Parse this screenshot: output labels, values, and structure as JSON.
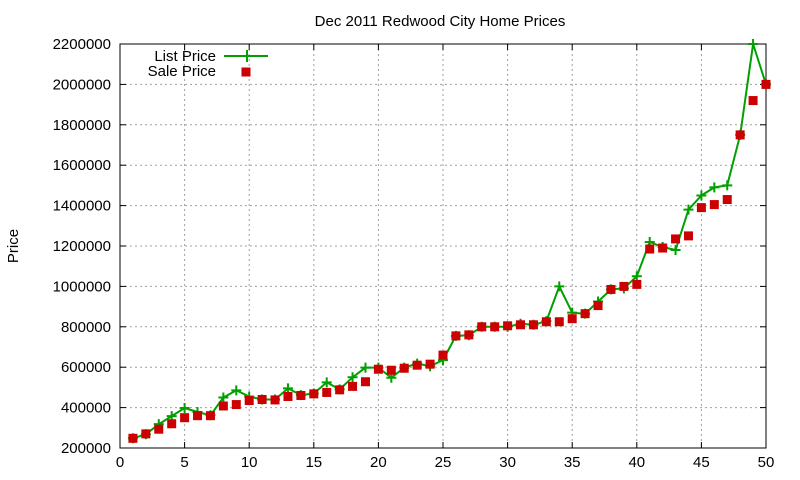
{
  "chart_data": {
    "type": "line",
    "title": "Dec 2011 Redwood City Home Prices",
    "xlabel": "",
    "ylabel": "Price",
    "xlim": [
      0,
      50
    ],
    "ylim": [
      200000,
      2200000
    ],
    "xticks": [
      0,
      5,
      10,
      15,
      20,
      25,
      30,
      35,
      40,
      45,
      50
    ],
    "yticks": [
      200000,
      400000,
      600000,
      800000,
      1000000,
      1200000,
      1400000,
      1600000,
      1800000,
      2000000,
      2200000
    ],
    "grid": true,
    "legend_position": "top-left",
    "x": [
      1,
      2,
      3,
      4,
      5,
      6,
      7,
      8,
      9,
      10,
      11,
      12,
      13,
      14,
      15,
      16,
      17,
      18,
      19,
      20,
      21,
      22,
      23,
      24,
      25,
      26,
      27,
      28,
      29,
      30,
      31,
      32,
      33,
      34,
      35,
      36,
      37,
      38,
      39,
      40,
      41,
      42,
      43,
      44,
      45,
      46,
      47,
      48,
      49,
      50
    ],
    "series": [
      {
        "name": "List Price",
        "style": "line+plus",
        "color": "#00a000",
        "values": [
          248000,
          268000,
          318000,
          358000,
          398000,
          378000,
          362000,
          450000,
          485000,
          455000,
          440000,
          440000,
          495000,
          462000,
          470000,
          525000,
          490000,
          550000,
          598000,
          598000,
          548000,
          598000,
          618000,
          605000,
          635000,
          755000,
          758000,
          800000,
          800000,
          800000,
          815000,
          810000,
          828000,
          1000000,
          870000,
          865000,
          925000,
          985000,
          990000,
          1050000,
          1220000,
          1195000,
          1180000,
          1380000,
          1450000,
          1490000,
          1500000,
          1750000,
          2200000,
          2000000
        ]
      },
      {
        "name": "Sale Price",
        "style": "square",
        "color": "#cc0000",
        "values": [
          248000,
          270000,
          293000,
          320000,
          350000,
          360000,
          360000,
          408000,
          415000,
          435000,
          440000,
          438000,
          455000,
          460000,
          468000,
          475000,
          488000,
          505000,
          528000,
          590000,
          585000,
          595000,
          610000,
          615000,
          660000,
          755000,
          760000,
          800000,
          800000,
          805000,
          810000,
          810000,
          825000,
          825000,
          840000,
          865000,
          905000,
          985000,
          1000000,
          1010000,
          1185000,
          1190000,
          1235000,
          1250000,
          1390000,
          1405000,
          1430000,
          1750000,
          1920000,
          2000000
        ]
      }
    ]
  }
}
